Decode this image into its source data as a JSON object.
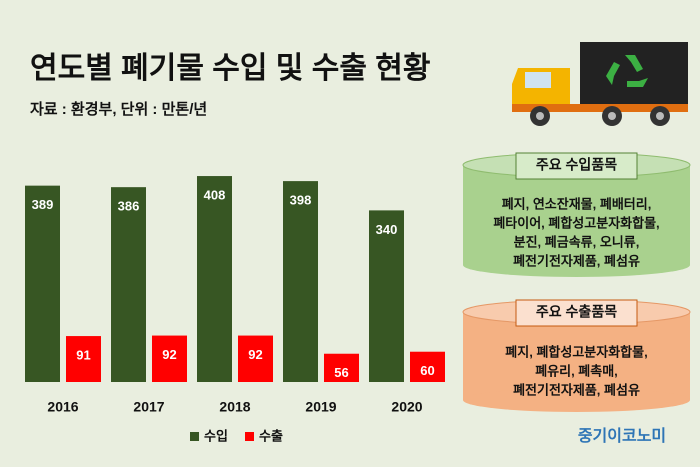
{
  "chart_data": {
    "type": "bar",
    "title": "연도별 폐기물 수입 및 수출 현황",
    "subtitle": "자료 : 환경부, 단위 : 만톤/년",
    "categories": [
      "2016",
      "2017",
      "2018",
      "2019",
      "2020"
    ],
    "series": [
      {
        "name": "수입",
        "color": "#375623",
        "values": [
          389,
          386,
          408,
          398,
          340
        ]
      },
      {
        "name": "수출",
        "color": "#ff0000",
        "values": [
          91,
          92,
          92,
          56,
          60
        ]
      }
    ],
    "ylim": [
      0,
      420
    ]
  },
  "import_panel": {
    "title": "주요 수입품목",
    "lines": [
      "폐지, 연소잔재물, 폐배터리,",
      "폐타이어, 폐합성고분자화합물,",
      "분진, 폐금속류, 오니류,",
      "폐전기전자제품, 폐섬유"
    ]
  },
  "export_panel": {
    "title": "주요 수출품목",
    "lines": [
      "폐지, 폐합성고분자화합물,",
      "폐유리, 폐촉매,",
      "폐전기전자제품, 폐섬유"
    ]
  },
  "brand": "중기이코노미"
}
